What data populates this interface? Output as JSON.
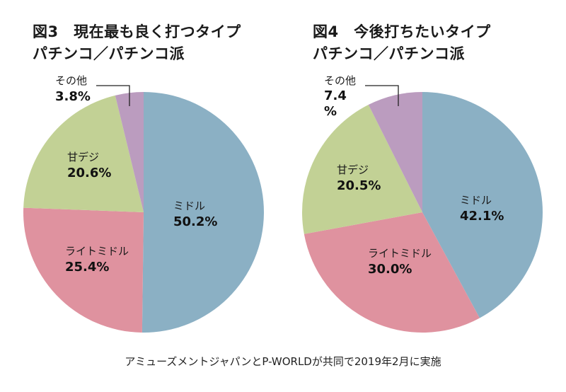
{
  "chart_data": [
    {
      "type": "pie",
      "title": "図3　現在最も良く打つタイプ",
      "subtitle": "パチンコ／パチンコ派",
      "slices": [
        {
          "label": "ミドル",
          "value": 50.2,
          "display": "50.2%",
          "color": "#8bb0c4"
        },
        {
          "label": "ライトミドル",
          "value": 25.4,
          "display": "25.4%",
          "color": "#df929f"
        },
        {
          "label": "甘デジ",
          "value": 20.6,
          "display": "20.6%",
          "color": "#c2d195"
        },
        {
          "label": "その他",
          "value": 3.8,
          "display": "3.8%",
          "color": "#bb9cbf"
        }
      ]
    },
    {
      "type": "pie",
      "title": "図4　今後打ちたいタイプ",
      "subtitle": "パチンコ／パチンコ派",
      "slices": [
        {
          "label": "ミドル",
          "value": 42.1,
          "display": "42.1%",
          "color": "#8bb0c4"
        },
        {
          "label": "ライトミドル",
          "value": 30.0,
          "display": "30.0%",
          "color": "#df929f"
        },
        {
          "label": "甘デジ",
          "value": 20.5,
          "display": "20.5%",
          "color": "#c2d195"
        },
        {
          "label": "その他",
          "value": 7.4,
          "display_lines": [
            "7.4",
            "%"
          ],
          "color": "#bb9cbf"
        }
      ]
    }
  ],
  "footnote": "アミューズメントジャパンとP-WORLDが共同で2019年2月に実施"
}
